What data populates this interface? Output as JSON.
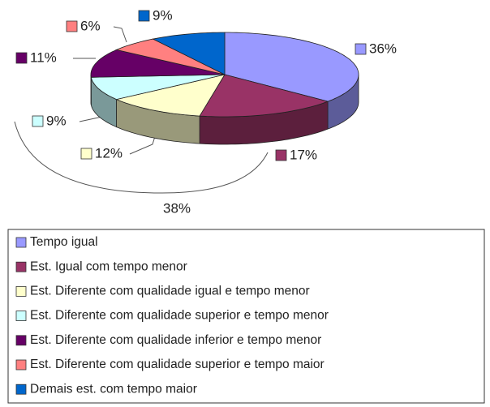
{
  "chart_data": {
    "type": "pie",
    "categories": [
      "Tempo igual",
      "Est. Igual com tempo menor",
      "Est. Diferente com qualidade igual e tempo menor",
      "Est. Diferente com qualidade superior e tempo menor",
      "Est. Diferente com qualidade inferior e tempo menor",
      "Est. Diferente com qualidade superior e tempo maior",
      "Demais est. com tempo maior"
    ],
    "values": [
      36,
      17,
      12,
      9,
      11,
      6,
      9
    ],
    "value_labels": [
      "36%",
      "17%",
      "12%",
      "9%",
      "11%",
      "6%",
      "9%"
    ],
    "colors": [
      "#9999ff",
      "#993366",
      "#ffffcc",
      "#ccffff",
      "#660066",
      "#ff8080",
      "#0066cc"
    ],
    "annotation": "38%",
    "legend": "bottom"
  }
}
